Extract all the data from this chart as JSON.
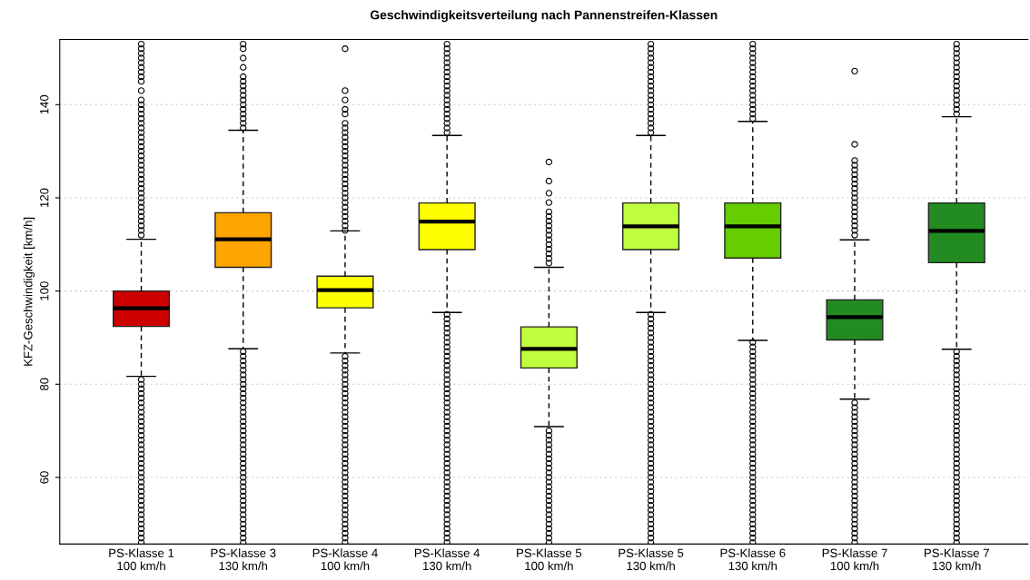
{
  "chart_data": {
    "type": "box",
    "title": "Geschwindigkeitsverteilung nach Pannenstreifen-Klassen",
    "ylabel": "KFZ-Geschwindigkeit [km/h]",
    "categories": [
      "PS-Klasse 1\n100 km/h",
      "PS-Klasse 3\n130 km/h",
      "PS-Klasse 4\n100 km/h",
      "PS-Klasse 4\n130 km/h",
      "PS-Klasse 5\n100 km/h",
      "PS-Klasse 5\n130 km/h",
      "PS-Klasse 6\n130 km/h",
      "PS-Klasse 7\n100 km/h",
      "PS-Klasse 7\n130 km/h"
    ],
    "colors": [
      "#cc0000",
      "#ffa500",
      "#ffff00",
      "#ffff00",
      "#c0ff3e",
      "#c0ff3e",
      "#66cd00",
      "#228b22",
      "#228b22"
    ],
    "boxes": [
      {
        "low": 81.7,
        "q1": 92.4,
        "median": 96.3,
        "q3": 100,
        "high": 111.1,
        "outliers": [
          46,
          47,
          48,
          49,
          50,
          51,
          52,
          53,
          54,
          55,
          56,
          57,
          58,
          59,
          60,
          61,
          62,
          63,
          64,
          65,
          66,
          67,
          68,
          69,
          70,
          71,
          72,
          73,
          74,
          75,
          76,
          77,
          78,
          79,
          80,
          81,
          112,
          113,
          114,
          115,
          116,
          117,
          118,
          119,
          120,
          121,
          122,
          123,
          124,
          125,
          126,
          127,
          128,
          129,
          130,
          131,
          132,
          133,
          134,
          135,
          136,
          137,
          138,
          139,
          140,
          141,
          143,
          145,
          146,
          147,
          148,
          149,
          150,
          151,
          152,
          153
        ]
      },
      {
        "low": 87.6,
        "q1": 105.1,
        "median": 111.1,
        "q3": 116.8,
        "high": 134.5,
        "outliers": [
          46,
          47,
          48,
          49,
          50,
          51,
          52,
          53,
          54,
          55,
          56,
          57,
          58,
          59,
          60,
          61,
          62,
          63,
          64,
          65,
          66,
          67,
          68,
          69,
          70,
          71,
          72,
          73,
          74,
          75,
          76,
          77,
          78,
          79,
          80,
          81,
          82,
          83,
          84,
          85,
          86,
          87,
          135,
          136,
          137,
          138,
          139,
          140,
          141,
          142,
          143,
          144,
          145,
          146,
          148,
          150,
          152,
          153
        ]
      },
      {
        "low": 86.7,
        "q1": 96.4,
        "median": 100.2,
        "q3": 103.2,
        "high": 112.9,
        "outliers": [
          46,
          47,
          48,
          49,
          50,
          51,
          52,
          53,
          54,
          55,
          56,
          57,
          58,
          59,
          60,
          61,
          62,
          63,
          64,
          65,
          66,
          67,
          68,
          69,
          70,
          71,
          72,
          73,
          74,
          75,
          76,
          77,
          78,
          79,
          80,
          81,
          82,
          83,
          84,
          85,
          86,
          113,
          114,
          115,
          116,
          117,
          118,
          119,
          120,
          121,
          122,
          123,
          124,
          125,
          126,
          127,
          128,
          129,
          130,
          131,
          132,
          133,
          134,
          135,
          136,
          138,
          139,
          141,
          143,
          152
        ]
      },
      {
        "low": 95.4,
        "q1": 108.9,
        "median": 114.9,
        "q3": 118.9,
        "high": 133.4,
        "outliers": [
          46,
          47,
          48,
          49,
          50,
          51,
          52,
          53,
          54,
          55,
          56,
          57,
          58,
          59,
          60,
          61,
          62,
          63,
          64,
          65,
          66,
          67,
          68,
          69,
          70,
          71,
          72,
          73,
          74,
          75,
          76,
          77,
          78,
          79,
          80,
          81,
          82,
          83,
          84,
          85,
          86,
          87,
          88,
          89,
          90,
          91,
          92,
          93,
          94,
          95,
          134,
          135,
          136,
          137,
          138,
          139,
          140,
          141,
          142,
          143,
          144,
          145,
          146,
          147,
          148,
          149,
          150,
          151,
          152,
          153
        ]
      },
      {
        "low": 70.9,
        "q1": 83.5,
        "median": 87.6,
        "q3": 92.3,
        "high": 105.1,
        "outliers": [
          46,
          47,
          48,
          49,
          50,
          51,
          52,
          53,
          54,
          55,
          56,
          57,
          58,
          59,
          60,
          61,
          62,
          63,
          64,
          65,
          66,
          67,
          68,
          69,
          70,
          106,
          107,
          108,
          109,
          110,
          111,
          112,
          113,
          114,
          115,
          116,
          117,
          119,
          121,
          123.6,
          127.7
        ]
      },
      {
        "low": 95.4,
        "q1": 108.9,
        "median": 113.9,
        "q3": 118.9,
        "high": 133.4,
        "outliers": [
          46,
          47,
          48,
          49,
          50,
          51,
          52,
          53,
          54,
          55,
          56,
          57,
          58,
          59,
          60,
          61,
          62,
          63,
          64,
          65,
          66,
          67,
          68,
          69,
          70,
          71,
          72,
          73,
          74,
          75,
          76,
          77,
          78,
          79,
          80,
          81,
          82,
          83,
          84,
          85,
          86,
          87,
          88,
          89,
          90,
          91,
          92,
          93,
          94,
          95,
          134,
          135,
          136,
          137,
          138,
          139,
          140,
          141,
          142,
          143,
          144,
          145,
          146,
          147,
          148,
          149,
          150,
          151,
          152,
          153
        ]
      },
      {
        "low": 89.4,
        "q1": 107.1,
        "median": 113.9,
        "q3": 118.9,
        "high": 136.4,
        "outliers": [
          46,
          47,
          48,
          49,
          50,
          51,
          52,
          53,
          54,
          55,
          56,
          57,
          58,
          59,
          60,
          61,
          62,
          63,
          64,
          65,
          66,
          67,
          68,
          69,
          70,
          71,
          72,
          73,
          74,
          75,
          76,
          77,
          78,
          79,
          80,
          81,
          82,
          83,
          84,
          85,
          86,
          87,
          88,
          89,
          137,
          138,
          139,
          140,
          141,
          142,
          143,
          144,
          145,
          146,
          147,
          148,
          149,
          150,
          151,
          152,
          153
        ]
      },
      {
        "low": 76.8,
        "q1": 89.5,
        "median": 94.4,
        "q3": 98.1,
        "high": 111,
        "outliers": [
          46,
          47,
          48,
          49,
          50,
          51,
          52,
          53,
          54,
          55,
          56,
          57,
          58,
          59,
          60,
          61,
          62,
          63,
          64,
          65,
          66,
          67,
          68,
          69,
          70,
          71,
          72,
          73,
          74,
          75,
          76,
          112,
          113,
          114,
          115,
          116,
          117,
          118,
          119,
          120,
          121,
          122,
          123,
          124,
          125,
          126,
          127,
          128,
          131.5,
          147.2
        ]
      },
      {
        "low": 87.5,
        "q1": 106.1,
        "median": 112.9,
        "q3": 118.9,
        "high": 137.4,
        "outliers": [
          46,
          47,
          48,
          49,
          50,
          51,
          52,
          53,
          54,
          55,
          56,
          57,
          58,
          59,
          60,
          61,
          62,
          63,
          64,
          65,
          66,
          67,
          68,
          69,
          70,
          71,
          72,
          73,
          74,
          75,
          76,
          77,
          78,
          79,
          80,
          81,
          82,
          83,
          84,
          85,
          86,
          87,
          138,
          139,
          140,
          141,
          142,
          143,
          144,
          145,
          146,
          147,
          148,
          149,
          150,
          151,
          152,
          153
        ]
      }
    ],
    "ylim": [
      45.7,
      154
    ],
    "yticks": [
      60,
      80,
      100,
      120,
      140
    ],
    "grid": "y",
    "line_style": "dashed",
    "marker": "circle"
  }
}
